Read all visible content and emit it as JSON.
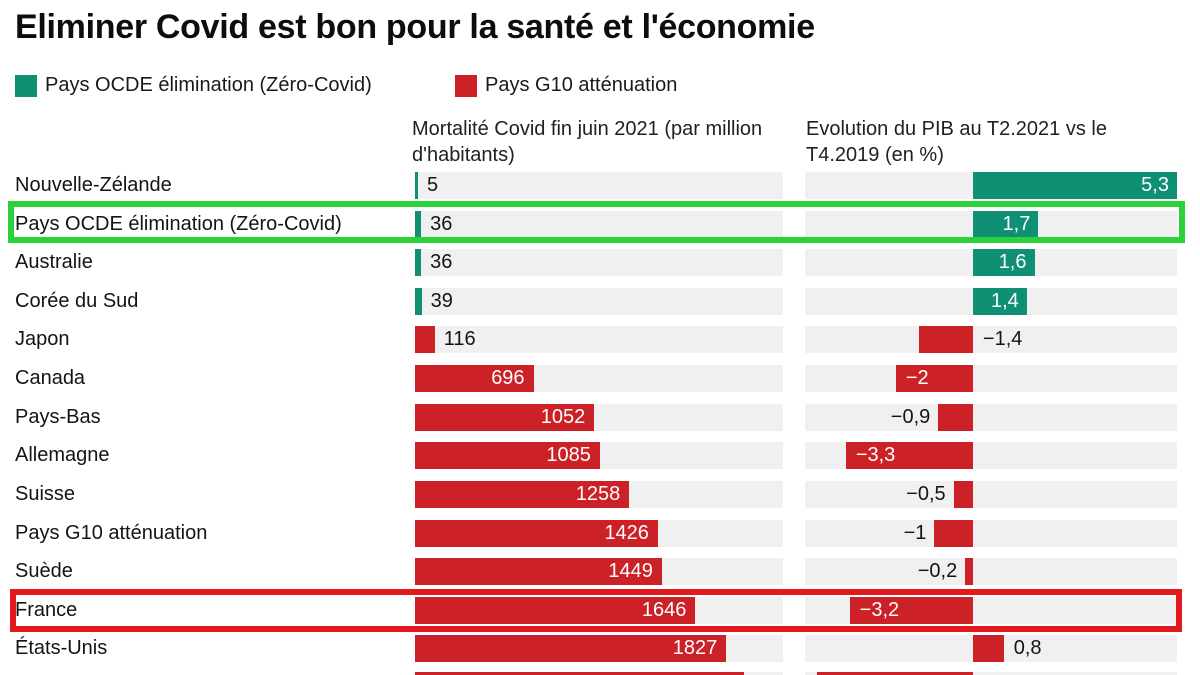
{
  "title": "Eliminer Covid est bon pour la santé et l'économie",
  "legend": [
    {
      "label": "Pays OCDE élimination (Zéro-Covid)",
      "color": "#0f8f74"
    },
    {
      "label": "Pays G10 atténuation",
      "color": "#cb2127"
    }
  ],
  "columns": {
    "mortality_header": "Mortalité Covid fin juin 2021 (par million d'habitants)",
    "gdp_header": "Evolution du PIB au T2.2021 vs le T4.2019 (en %)"
  },
  "colors": {
    "teal_bar": "#0f8f74",
    "red_bar": "#cb2127",
    "track_gray": "#f0f0f0",
    "highlight_green_box": "#2bd13a",
    "highlight_red_box": "#e2191d",
    "text_dark": "#141414",
    "text_inside_bar": "#ffffff"
  },
  "chart_data": {
    "type": "bar",
    "orientation": "horizontal",
    "title": "Eliminer Covid est bon pour la santé et l'économie",
    "legend": [
      "Pays OCDE élimination (Zéro-Covid)",
      "Pays G10 atténuation"
    ],
    "legend_position": "top-left",
    "grid": false,
    "categories": [
      "Nouvelle-Zélande",
      "Pays OCDE élimination (Zéro-Covid)",
      "Australie",
      "Corée du Sud",
      "Japon",
      "Canada",
      "Pays-Bas",
      "Allemagne",
      "Suisse",
      "Pays G10 atténuation",
      "Suède",
      "France",
      "États-Unis"
    ],
    "series": [
      {
        "name": "Mortalité Covid fin juin 2021 (par million d'habitants)",
        "xlim": [
          0,
          2160
        ],
        "values": [
          5,
          36,
          36,
          39,
          116,
          696,
          1052,
          1085,
          1258,
          1426,
          1449,
          1646,
          1827
        ]
      },
      {
        "name": "Evolution du PIB au T2.2021 vs le T4.2019 (en %)",
        "xlim": [
          -4.36,
          5.3
        ],
        "values": [
          5.3,
          1.7,
          1.6,
          1.4,
          -1.4,
          -2,
          -0.9,
          -3.3,
          -0.5,
          -1,
          -0.2,
          -3.2,
          0.8
        ]
      }
    ],
    "highlighted_rows": {
      "green_box": "Pays OCDE élimination (Zéro-Covid)",
      "red_box": "France"
    }
  },
  "rows": [
    {
      "label": "Nouvelle-Zélande",
      "group": "teal",
      "highlight": null,
      "mortality": {
        "value": 5,
        "display": "5",
        "label_pos": "out"
      },
      "gdp": {
        "value": 5.3,
        "display": "5,3",
        "label_pos": "in"
      }
    },
    {
      "label": "Pays OCDE élimination (Zéro-Covid)",
      "group": "teal",
      "highlight": "green",
      "mortality": {
        "value": 36,
        "display": "36",
        "label_pos": "out"
      },
      "gdp": {
        "value": 1.7,
        "display": "1,7",
        "label_pos": "in"
      }
    },
    {
      "label": "Australie",
      "group": "teal",
      "highlight": null,
      "mortality": {
        "value": 36,
        "display": "36",
        "label_pos": "out"
      },
      "gdp": {
        "value": 1.6,
        "display": "1,6",
        "label_pos": "in"
      }
    },
    {
      "label": "Corée du Sud",
      "group": "teal",
      "highlight": null,
      "mortality": {
        "value": 39,
        "display": "39",
        "label_pos": "out"
      },
      "gdp": {
        "value": 1.4,
        "display": "1,4",
        "label_pos": "in"
      }
    },
    {
      "label": "Japon",
      "group": "red",
      "highlight": null,
      "mortality": {
        "value": 116,
        "display": "116",
        "label_pos": "out"
      },
      "gdp": {
        "value": -1.4,
        "display": "−1,4",
        "label_pos": "right"
      }
    },
    {
      "label": "Canada",
      "group": "red",
      "highlight": null,
      "mortality": {
        "value": 696,
        "display": "696",
        "label_pos": "in"
      },
      "gdp": {
        "value": -2,
        "display": "−2",
        "label_pos": "in"
      }
    },
    {
      "label": "Pays-Bas",
      "group": "red",
      "highlight": null,
      "mortality": {
        "value": 1052,
        "display": "1052",
        "label_pos": "in"
      },
      "gdp": {
        "value": -0.9,
        "display": "−0,9",
        "label_pos": "left"
      }
    },
    {
      "label": "Allemagne",
      "group": "red",
      "highlight": null,
      "mortality": {
        "value": 1085,
        "display": "1085",
        "label_pos": "in"
      },
      "gdp": {
        "value": -3.3,
        "display": "−3,3",
        "label_pos": "in"
      }
    },
    {
      "label": "Suisse",
      "group": "red",
      "highlight": null,
      "mortality": {
        "value": 1258,
        "display": "1258",
        "label_pos": "in"
      },
      "gdp": {
        "value": -0.5,
        "display": "−0,5",
        "label_pos": "left"
      }
    },
    {
      "label": "Pays G10 atténuation",
      "group": "red",
      "highlight": null,
      "mortality": {
        "value": 1426,
        "display": "1426",
        "label_pos": "in"
      },
      "gdp": {
        "value": -1,
        "display": "−1",
        "label_pos": "left"
      }
    },
    {
      "label": "Suède",
      "group": "red",
      "highlight": null,
      "mortality": {
        "value": 1449,
        "display": "1449",
        "label_pos": "in"
      },
      "gdp": {
        "value": -0.2,
        "display": "−0,2",
        "label_pos": "left"
      }
    },
    {
      "label": "France",
      "group": "red",
      "highlight": "red",
      "mortality": {
        "value": 1646,
        "display": "1646",
        "label_pos": "in"
      },
      "gdp": {
        "value": -3.2,
        "display": "−3,2",
        "label_pos": "in"
      }
    },
    {
      "label": "États-Unis",
      "group": "red",
      "highlight": null,
      "mortality": {
        "value": 1827,
        "display": "1827",
        "label_pos": "in"
      },
      "gdp": {
        "value": 0.8,
        "display": "0,8",
        "label_pos": "right"
      }
    },
    {
      "label": "",
      "group": "red",
      "highlight": null,
      "partial": true,
      "mortality": {
        "value": 1930,
        "display": "",
        "label_pos": "none"
      },
      "gdp": {
        "value": -4.05,
        "display": "",
        "label_pos": "none"
      }
    }
  ]
}
